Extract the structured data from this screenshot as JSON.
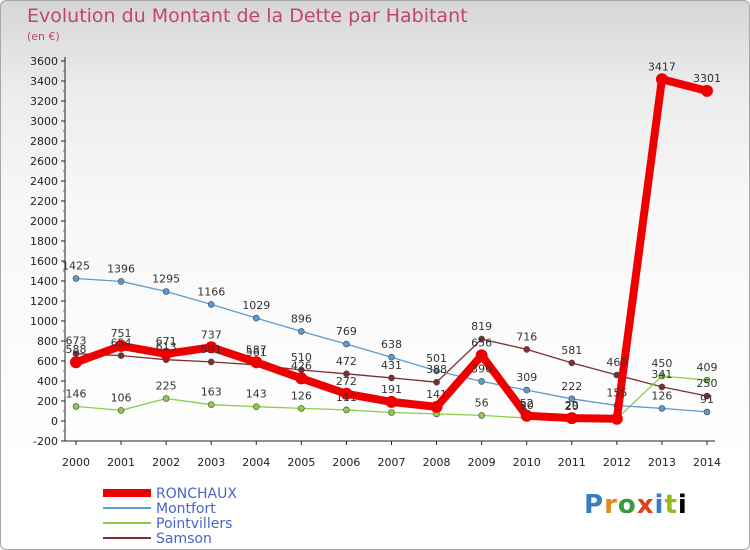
{
  "title": "Evolution du Montant de la Dette par Habitant",
  "unit": "(en €)",
  "logo": [
    "P",
    "r",
    "o",
    "x",
    "i",
    "t",
    "i"
  ],
  "chart_data": {
    "type": "line",
    "title": "Evolution du Montant de la Dette par Habitant",
    "ylabel": "(en €)",
    "ylim": [
      -200,
      3600
    ],
    "yticks": [
      -200,
      0,
      200,
      400,
      600,
      800,
      1000,
      1200,
      1400,
      1600,
      1800,
      2000,
      2200,
      2400,
      2600,
      2800,
      3000,
      3200,
      3400,
      3600
    ],
    "x": [
      "2000",
      "2001",
      "2002",
      "2003",
      "2004",
      "2005",
      "2006",
      "2007",
      "2008",
      "2009",
      "2010",
      "2011",
      "2012",
      "2013",
      "2014"
    ],
    "grid": false,
    "legend": "bottom-left",
    "series": [
      {
        "name": "RONCHAUX",
        "color": "#ee0000",
        "width": 8,
        "radius": 6,
        "values": [
          588,
          751,
          671,
          737,
          587,
          426,
          272,
          191,
          141,
          656,
          52,
          29,
          23,
          3417,
          3301
        ],
        "labels": [
          "588",
          "751",
          "671",
          "737",
          "587",
          "426",
          "272",
          "191",
          "141",
          "656",
          "52",
          "29",
          "",
          "3417",
          "3301"
        ]
      },
      {
        "name": "Montfort",
        "color": "#5a9bd4",
        "width": 1.3,
        "radius": 3,
        "values": [
          1425,
          1396,
          1295,
          1166,
          1029,
          896,
          769,
          638,
          501,
          396,
          309,
          222,
          155,
          126,
          91
        ],
        "labels": [
          "1425",
          "1396",
          "1295",
          "1166",
          "1029",
          "896",
          "769",
          "638",
          "501",
          "396",
          "309",
          "222",
          "155",
          "126",
          "91"
        ]
      },
      {
        "name": "Pointvillers",
        "color": "#8ccc49",
        "width": 1.3,
        "radius": 3,
        "values": [
          146,
          106,
          225,
          163,
          143,
          126,
          111,
          85,
          71,
          56,
          30,
          20,
          23,
          450,
          409
        ],
        "labels": [
          "146",
          "106",
          "225",
          "163",
          "143",
          "126",
          "111",
          "",
          "",
          "56",
          "30",
          "20",
          "",
          "450",
          "409"
        ]
      },
      {
        "name": "Samson",
        "color": "#7a3030",
        "width": 1.3,
        "radius": 3,
        "values": [
          673,
          654,
          613,
          591,
          561,
          510,
          472,
          431,
          388,
          819,
          716,
          581,
          460,
          341,
          250
        ],
        "labels": [
          "673",
          "654",
          "613",
          "591",
          "561",
          "510",
          "472",
          "431",
          "388",
          "819",
          "716",
          "581",
          "460",
          "341",
          "250"
        ]
      }
    ]
  }
}
